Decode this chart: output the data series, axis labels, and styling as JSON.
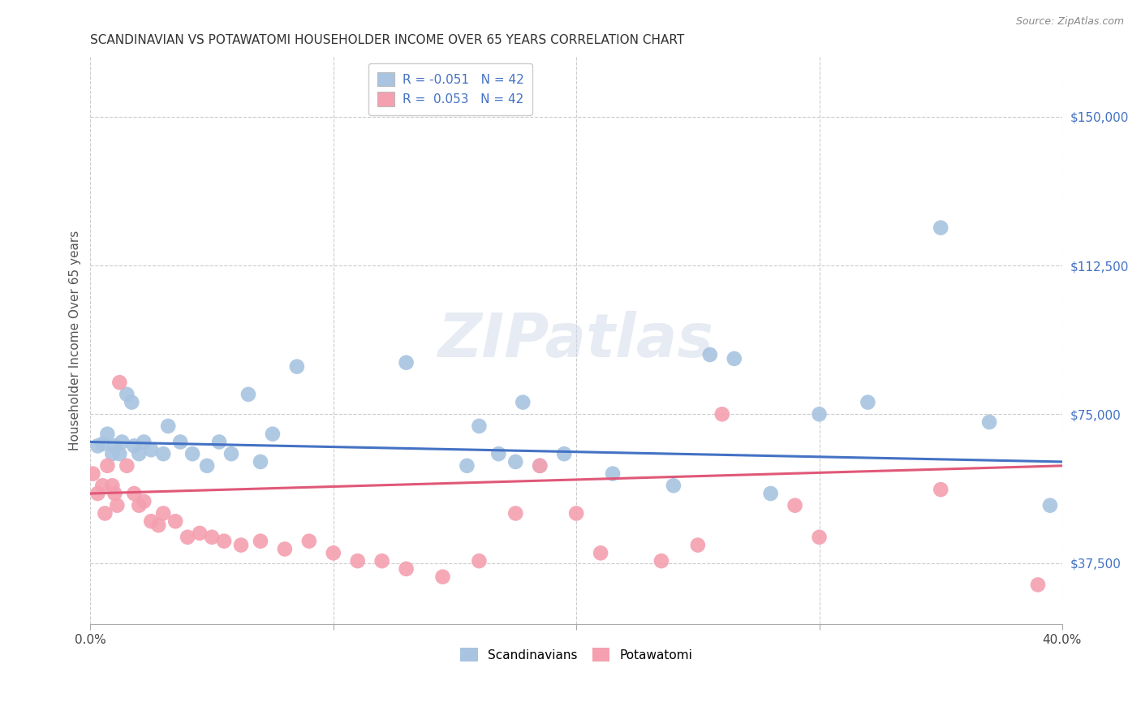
{
  "title": "SCANDINAVIAN VS POTAWATOMI HOUSEHOLDER INCOME OVER 65 YEARS CORRELATION CHART",
  "source": "Source: ZipAtlas.com",
  "ylabel": "Householder Income Over 65 years",
  "xlim": [
    0.0,
    0.4
  ],
  "ylim": [
    22000,
    165000
  ],
  "yticks": [
    37500,
    75000,
    112500,
    150000
  ],
  "ytick_labels": [
    "$37,500",
    "$75,000",
    "$112,500",
    "$150,000"
  ],
  "xticks": [
    0.0,
    0.1,
    0.2,
    0.3,
    0.4
  ],
  "xtick_labels": [
    "0.0%",
    "",
    "",
    "",
    "40.0%"
  ],
  "legend_r_blue": "-0.051",
  "legend_n_blue": "42",
  "legend_r_pink": "0.053",
  "legend_n_pink": "42",
  "legend_label_blue": "Scandinavians",
  "legend_label_pink": "Potawatomi",
  "blue_color": "#a8c4e0",
  "pink_color": "#f4a0b0",
  "line_blue": "#4472c4",
  "line_pink": "#e05878",
  "watermark": "ZIPatlas",
  "scatter_blue": [
    [
      0.003,
      67000
    ],
    [
      0.005,
      67500
    ],
    [
      0.007,
      70000
    ],
    [
      0.009,
      65000
    ],
    [
      0.01,
      67000
    ],
    [
      0.012,
      65000
    ],
    [
      0.013,
      68000
    ],
    [
      0.015,
      80000
    ],
    [
      0.017,
      78000
    ],
    [
      0.018,
      67000
    ],
    [
      0.02,
      65000
    ],
    [
      0.022,
      68000
    ],
    [
      0.025,
      66000
    ],
    [
      0.03,
      65000
    ],
    [
      0.032,
      72000
    ],
    [
      0.037,
      68000
    ],
    [
      0.042,
      65000
    ],
    [
      0.048,
      62000
    ],
    [
      0.053,
      68000
    ],
    [
      0.058,
      65000
    ],
    [
      0.065,
      80000
    ],
    [
      0.07,
      63000
    ],
    [
      0.075,
      70000
    ],
    [
      0.085,
      87000
    ],
    [
      0.13,
      88000
    ],
    [
      0.155,
      62000
    ],
    [
      0.16,
      72000
    ],
    [
      0.168,
      65000
    ],
    [
      0.175,
      63000
    ],
    [
      0.178,
      78000
    ],
    [
      0.185,
      62000
    ],
    [
      0.195,
      65000
    ],
    [
      0.215,
      60000
    ],
    [
      0.24,
      57000
    ],
    [
      0.255,
      90000
    ],
    [
      0.265,
      89000
    ],
    [
      0.28,
      55000
    ],
    [
      0.3,
      75000
    ],
    [
      0.32,
      78000
    ],
    [
      0.35,
      122000
    ],
    [
      0.37,
      73000
    ],
    [
      0.395,
      52000
    ]
  ],
  "scatter_pink": [
    [
      0.001,
      60000
    ],
    [
      0.003,
      55000
    ],
    [
      0.005,
      57000
    ],
    [
      0.006,
      50000
    ],
    [
      0.007,
      62000
    ],
    [
      0.009,
      57000
    ],
    [
      0.01,
      55000
    ],
    [
      0.011,
      52000
    ],
    [
      0.012,
      83000
    ],
    [
      0.015,
      62000
    ],
    [
      0.018,
      55000
    ],
    [
      0.02,
      52000
    ],
    [
      0.022,
      53000
    ],
    [
      0.025,
      48000
    ],
    [
      0.028,
      47000
    ],
    [
      0.03,
      50000
    ],
    [
      0.035,
      48000
    ],
    [
      0.04,
      44000
    ],
    [
      0.045,
      45000
    ],
    [
      0.05,
      44000
    ],
    [
      0.055,
      43000
    ],
    [
      0.062,
      42000
    ],
    [
      0.07,
      43000
    ],
    [
      0.08,
      41000
    ],
    [
      0.09,
      43000
    ],
    [
      0.1,
      40000
    ],
    [
      0.11,
      38000
    ],
    [
      0.12,
      38000
    ],
    [
      0.13,
      36000
    ],
    [
      0.145,
      34000
    ],
    [
      0.16,
      38000
    ],
    [
      0.175,
      50000
    ],
    [
      0.185,
      62000
    ],
    [
      0.2,
      50000
    ],
    [
      0.21,
      40000
    ],
    [
      0.235,
      38000
    ],
    [
      0.25,
      42000
    ],
    [
      0.26,
      75000
    ],
    [
      0.29,
      52000
    ],
    [
      0.3,
      44000
    ],
    [
      0.35,
      56000
    ],
    [
      0.39,
      32000
    ]
  ],
  "trend_blue_y0": 68000,
  "trend_blue_y1": 63000,
  "trend_pink_y0": 55000,
  "trend_pink_y1": 62000
}
